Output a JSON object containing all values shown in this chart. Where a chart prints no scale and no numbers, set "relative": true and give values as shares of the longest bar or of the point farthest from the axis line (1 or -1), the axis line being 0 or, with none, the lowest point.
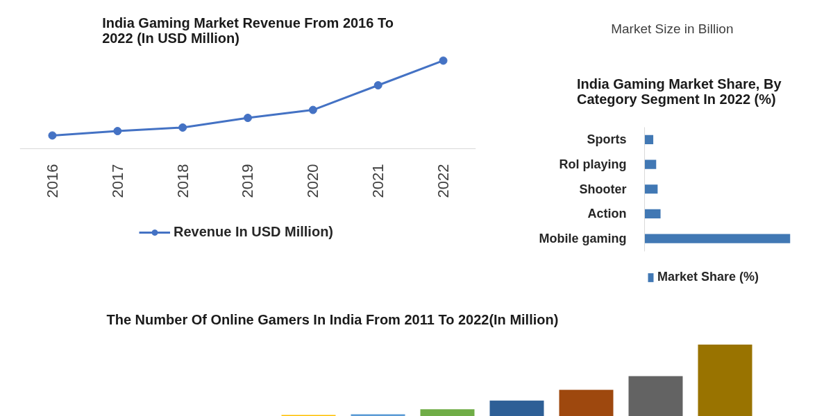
{
  "chart_data": [
    {
      "type": "line",
      "title": "India Gaming Market Revenue From 2016 To 2022 (In USD Million)",
      "categories": [
        "2016",
        "2017",
        "2018",
        "2019",
        "2020",
        "2021",
        "2022"
      ],
      "series": [
        {
          "name": "Revenue In USD Million)",
          "color": "#4472c4",
          "values": [
            0.15,
            0.2,
            0.24,
            0.35,
            0.44,
            0.72,
            1
          ]
        }
      ],
      "relative": true,
      "marker": "circle",
      "line_style": "solid",
      "legend": "bottom"
    },
    {
      "type": "other",
      "title": "Market Size in Billion"
    },
    {
      "type": "bar",
      "orientation": "horizontal",
      "title": "India Gaming Market Share, By Category Segment In 2022 (%)",
      "categories": [
        "Sports",
        "Rol playing",
        "Shooter",
        "Action",
        "Mobile gaming"
      ],
      "series": [
        {
          "name": "Market Share (%)",
          "color": "#4178b4",
          "values": [
            0.06,
            0.08,
            0.09,
            0.11,
            1
          ]
        }
      ],
      "relative": true,
      "legend": "bottom"
    },
    {
      "type": "bar",
      "title": "The Number Of Online Gamers In India From 2011 To 2022(In Million)",
      "categories": [
        null,
        null,
        null,
        null,
        null,
        null,
        null
      ],
      "values": [
        0.02,
        0.03,
        0.1,
        0.22,
        0.37,
        0.56,
        1
      ],
      "colors": [
        "#ffc000",
        "#5b9bd5",
        "#70ad47",
        "#2e5f96",
        "#9e480e",
        "#636363",
        "#997300"
      ],
      "relative": true
    }
  ]
}
